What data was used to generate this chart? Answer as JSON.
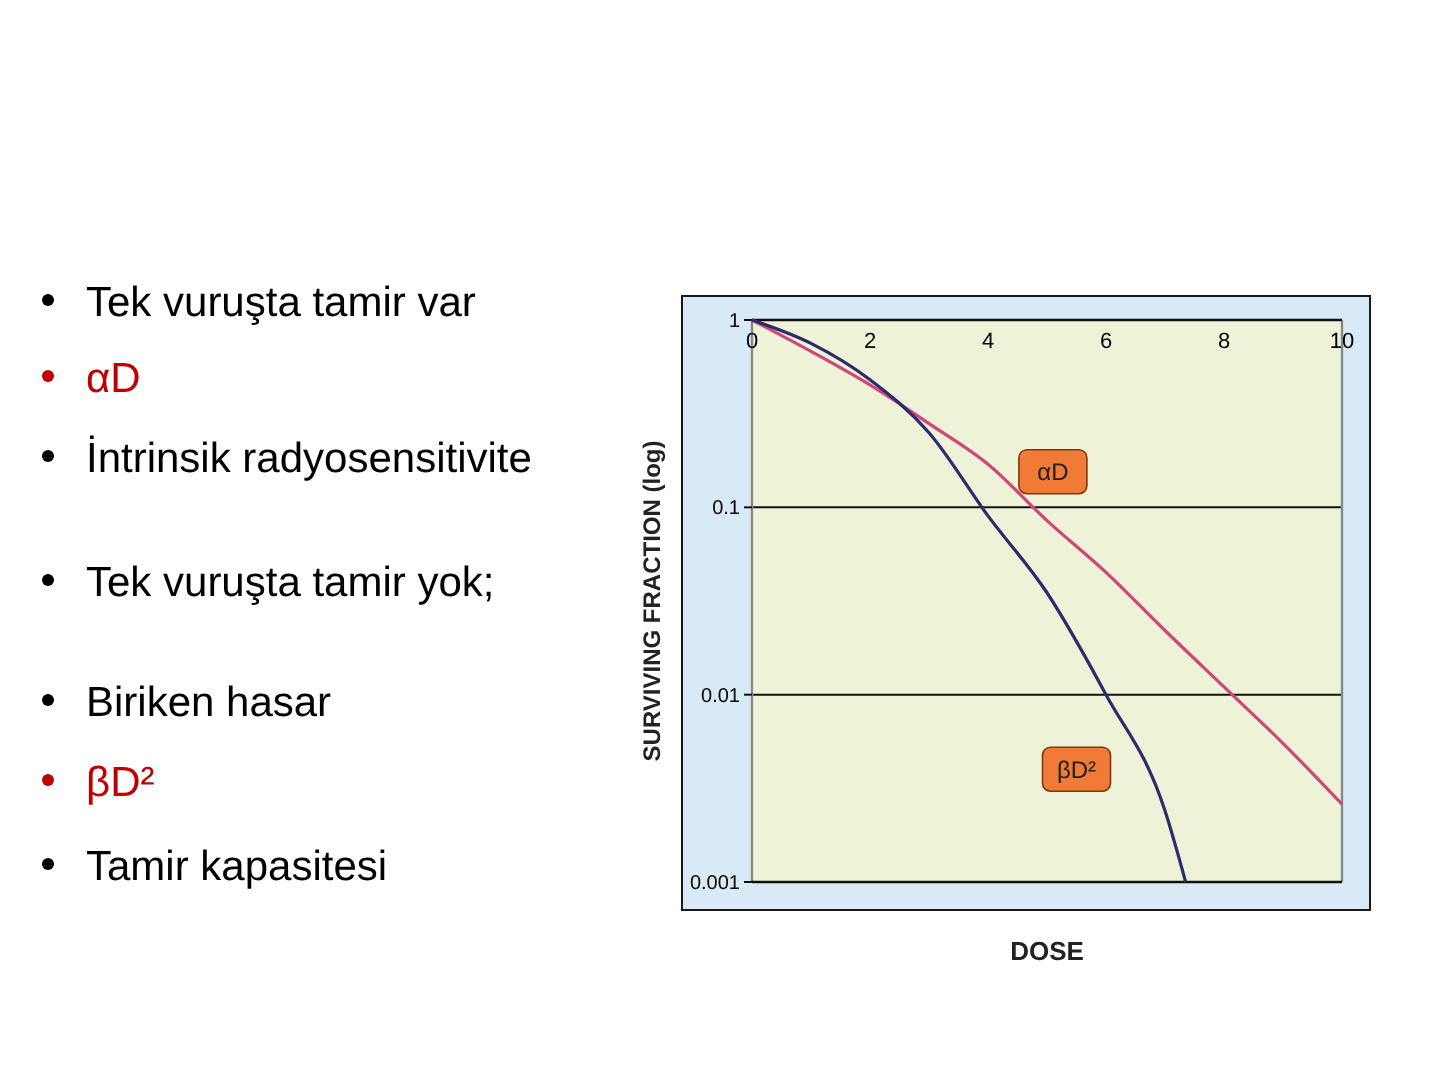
{
  "chart_data": [
    {
      "type": "other",
      "annotations": [
        "Tek vuruşta tamir var",
        "αD",
        "İntrinsik radyosensitivite",
        "Tek vuruşta tamir yok;",
        "Biriken hasar",
        "βD²",
        "Tamir kapasitesi"
      ],
      "colors": [
        "#000000",
        "#c00000",
        "#000000",
        "#000000",
        "#000000",
        "#c00000",
        "#000000"
      ]
    },
    {
      "type": "line",
      "xlabel": "DOSE",
      "ylabel": "SURVIVING FRACTION (log)",
      "log": "y",
      "xlim": [
        0,
        10
      ],
      "xticks": [
        0,
        2,
        4,
        6,
        8,
        10
      ],
      "ylim": [
        0.001,
        1
      ],
      "yticks": [
        1,
        0.1,
        0.01,
        0.001
      ],
      "grid": "y",
      "series": [
        {
          "color": "#d0457a",
          "x": [
            0,
            1,
            2,
            3,
            4,
            5,
            6,
            7,
            8,
            9,
            10
          ],
          "values": [
            1,
            0.68,
            0.45,
            0.28,
            0.17,
            0.085,
            0.045,
            0.022,
            0.011,
            0.0055,
            0.0026
          ]
        },
        {
          "color": "#2b2b6e",
          "x": [
            0,
            1,
            2,
            3,
            4,
            5,
            6,
            7,
            7.35
          ],
          "values": [
            1,
            0.75,
            0.48,
            0.25,
            0.09,
            0.035,
            0.01,
            0.0024,
            0.001
          ]
        }
      ],
      "annotations": [
        {
          "text": "αD",
          "x": 5.1,
          "y": 0.155
        },
        {
          "text": "βD²",
          "x": 5.5,
          "y": 0.004
        }
      ]
    }
  ]
}
